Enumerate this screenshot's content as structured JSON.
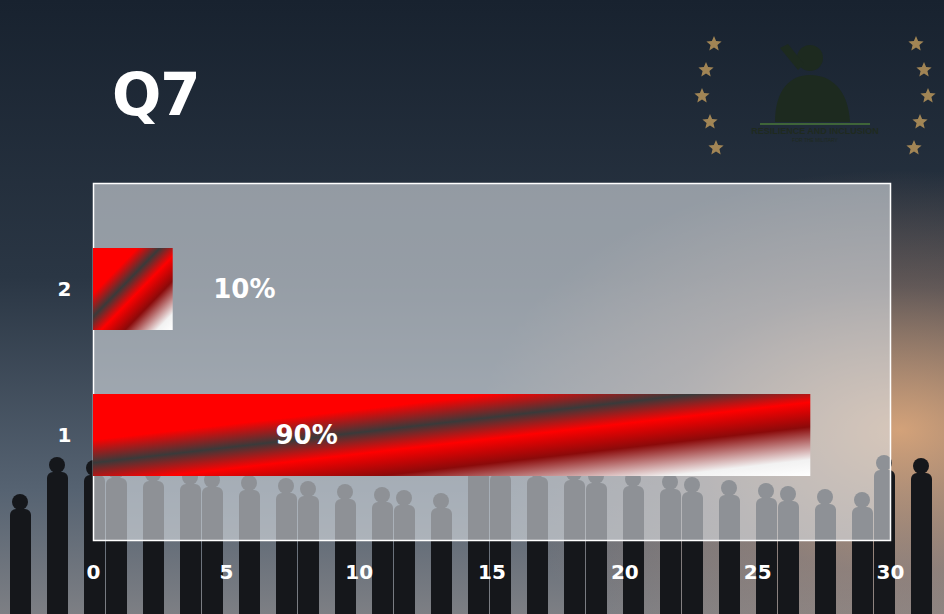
{
  "chart_data": {
    "type": "bar",
    "orientation": "horizontal",
    "title": "Q7",
    "annotations": [
      "RESILIENCE AND INCLUSION",
      "FOR THE MILITARY"
    ],
    "categories": [
      "1",
      "2"
    ],
    "values": [
      27,
      3
    ],
    "value_labels": [
      "90%",
      "10%"
    ],
    "data_labels": true,
    "color": "#ff0000",
    "xlim": [
      0,
      30
    ],
    "xticks": [
      0,
      5,
      10,
      15,
      20,
      25,
      30
    ],
    "grid": false
  }
}
